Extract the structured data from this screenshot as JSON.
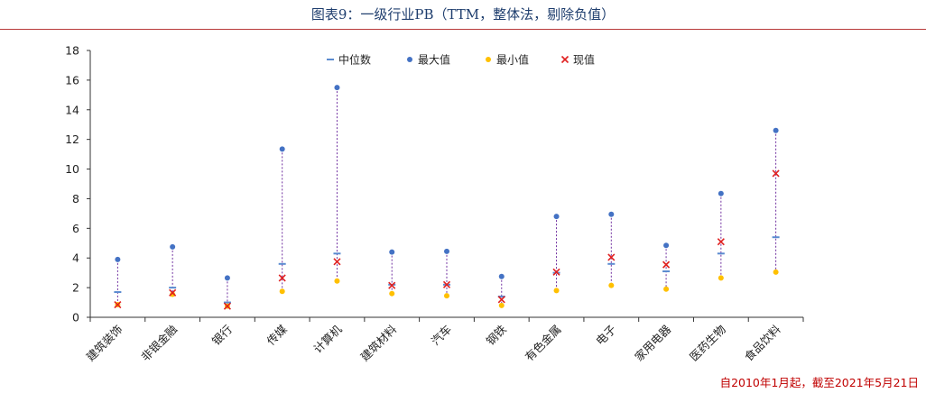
{
  "header": {
    "title": "图表9：一级行业PB（TTM，整体法，剔除负值）"
  },
  "footnote": "自2010年1月起，截至2021年5月21日",
  "chart_data": {
    "type": "scatter",
    "title": "图表9：一级行业PB（TTM，整体法，剔除负值）",
    "categories": [
      "建筑装饰",
      "非银金融",
      "银行",
      "传媒",
      "计算机",
      "建筑材料",
      "汽车",
      "钢铁",
      "有色金属",
      "电子",
      "家用电器",
      "医药生物",
      "食品饮料"
    ],
    "series": [
      {
        "name": "中位数",
        "marker": "dash",
        "color": "#5b8bd0",
        "values": [
          1.7,
          2.0,
          1.0,
          3.6,
          4.3,
          2.2,
          2.2,
          1.4,
          3.0,
          3.6,
          3.1,
          4.3,
          5.4
        ]
      },
      {
        "name": "最大值",
        "marker": "circle",
        "color": "#4472c4",
        "values": [
          3.9,
          4.75,
          2.65,
          11.35,
          15.5,
          4.4,
          4.45,
          2.75,
          6.8,
          6.95,
          4.85,
          8.35,
          12.6
        ]
      },
      {
        "name": "最小值",
        "marker": "circle",
        "color": "#ffc000",
        "values": [
          0.85,
          1.55,
          0.75,
          1.75,
          2.45,
          1.6,
          1.45,
          0.8,
          1.8,
          2.15,
          1.9,
          2.65,
          3.05
        ]
      },
      {
        "name": "现值",
        "marker": "x",
        "color": "#e02020",
        "values": [
          0.85,
          1.65,
          0.75,
          2.65,
          3.75,
          2.15,
          2.2,
          1.2,
          3.05,
          4.05,
          3.55,
          5.1,
          9.7
        ]
      }
    ],
    "yticks": [
      0,
      2,
      4,
      6,
      8,
      10,
      12,
      14,
      16,
      18
    ],
    "ylim": [
      0,
      18
    ],
    "range_line_color": "#7030a0",
    "legend_position": "top-center",
    "grid": false
  }
}
